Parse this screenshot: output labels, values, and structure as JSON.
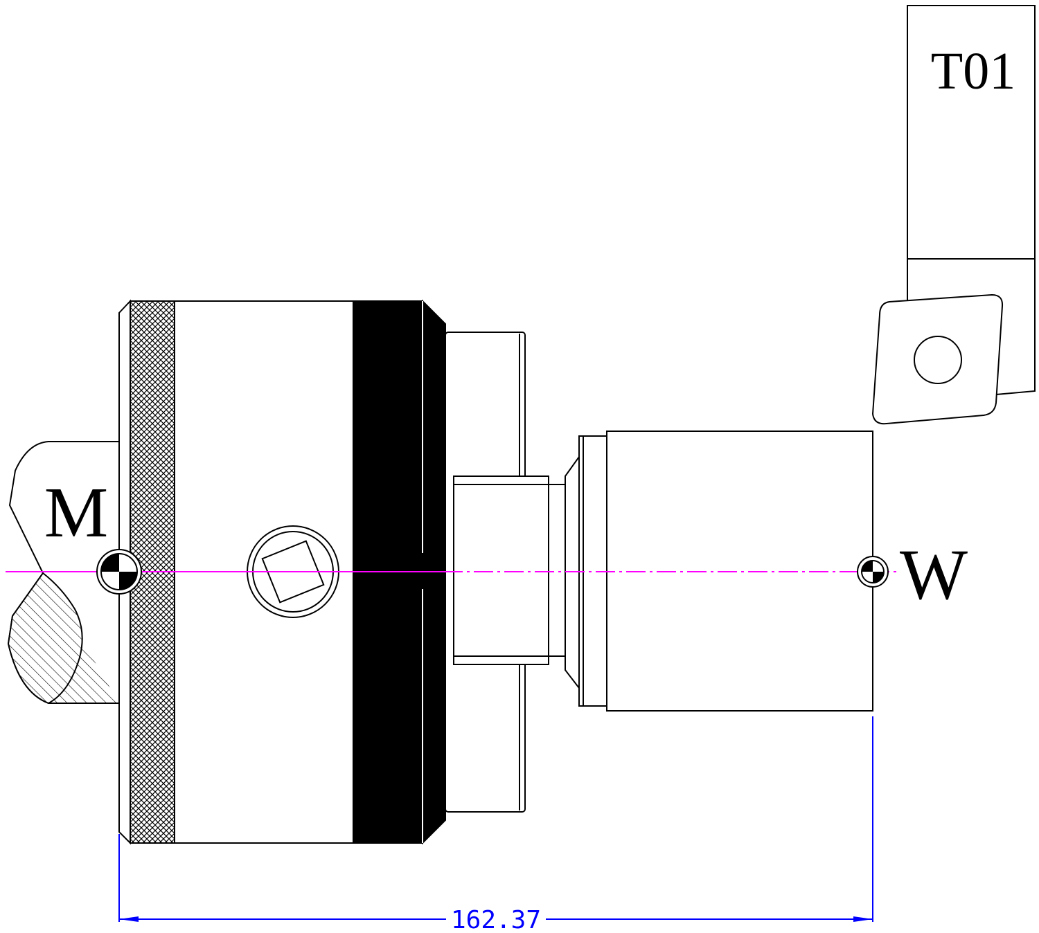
{
  "labels": {
    "machine_zero": "M",
    "workpiece_zero": "W",
    "tool": "T01"
  },
  "dimension": {
    "value": "162.37"
  },
  "colors": {
    "outline": "#000000",
    "centerline": "#ff00ff",
    "dimension": "#0000ff",
    "background": "#ffffff"
  }
}
